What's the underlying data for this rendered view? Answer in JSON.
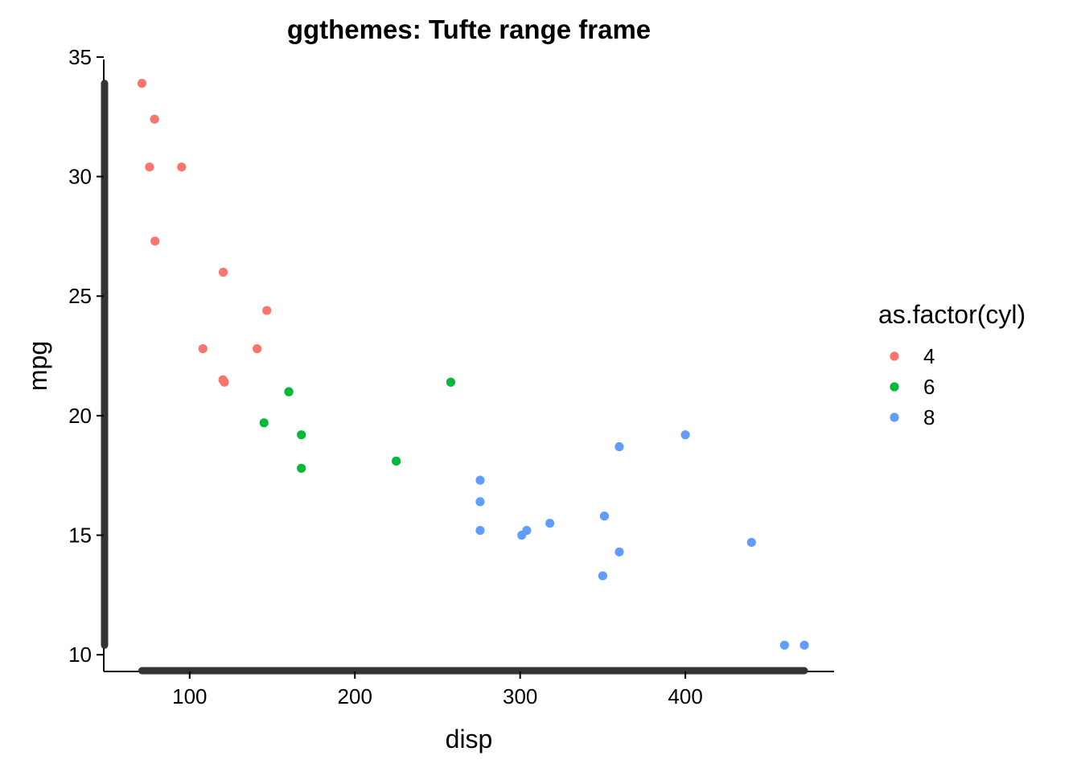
{
  "chart_data": {
    "type": "scatter",
    "title": "ggthemes: Tufte range frame",
    "xlabel": "disp",
    "ylabel": "mpg",
    "xlim": [
      48,
      490
    ],
    "ylim": [
      9.3,
      35.3
    ],
    "x_ticks": [
      100,
      200,
      300,
      400
    ],
    "y_ticks": [
      10,
      15,
      20,
      25,
      30,
      35
    ],
    "x_tick_labels": [
      "100",
      "200",
      "300",
      "400"
    ],
    "y_tick_labels": [
      "10",
      "15",
      "20",
      "25",
      "30",
      "35"
    ],
    "range_frame": {
      "x": [
        71.1,
        472
      ],
      "y": [
        10.4,
        33.9
      ]
    },
    "grid": false,
    "legend": {
      "title": "as.factor(cyl)",
      "position": "right"
    },
    "series": [
      {
        "name": "4",
        "color": "#F8766D",
        "x": [
          108,
          146.7,
          140.8,
          78.7,
          75.7,
          71.1,
          120.1,
          79,
          120.3,
          95.1,
          121
        ],
        "y": [
          22.8,
          24.4,
          22.8,
          32.4,
          30.4,
          33.9,
          21.5,
          27.3,
          26.0,
          30.4,
          21.4
        ]
      },
      {
        "name": "6",
        "color": "#00BA38",
        "x": [
          160,
          160,
          258,
          225,
          167.6,
          167.6,
          145
        ],
        "y": [
          21.0,
          21.0,
          21.4,
          18.1,
          19.2,
          17.8,
          19.7
        ]
      },
      {
        "name": "8",
        "color": "#619CFF",
        "x": [
          360,
          360,
          275.8,
          275.8,
          275.8,
          472,
          460,
          440,
          318,
          304,
          350,
          400,
          351,
          301
        ],
        "y": [
          18.7,
          14.3,
          16.4,
          17.3,
          15.2,
          10.4,
          10.4,
          14.7,
          15.5,
          15.2,
          13.3,
          19.2,
          15.8,
          15.0
        ]
      }
    ]
  }
}
